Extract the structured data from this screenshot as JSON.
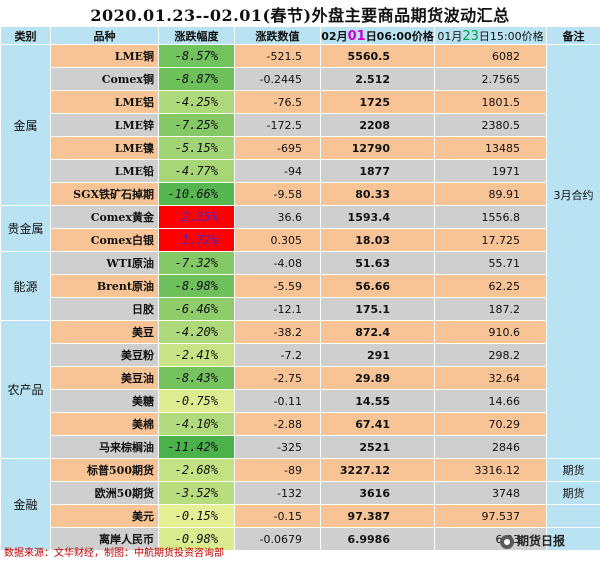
{
  "title": "2020.01.23--02.01(春节)外盘主要商品期货波动汇总",
  "headers": {
    "category": "类别",
    "name": "品种",
    "pct": "涨跌幅度",
    "chg": "涨跌数值",
    "new_prefix": "02月",
    "new_day": "01",
    "new_suffix": "日06:00价格",
    "old_prefix": "01月",
    "old_day": "23",
    "old_suffix": "日15:00价格",
    "note": "备注"
  },
  "colors": {
    "header_bg": "#b9e3f2",
    "row_orange": "#f8c496",
    "row_gray": "#cfcfcf",
    "accent_red": "#c00000"
  },
  "groups": [
    {
      "category": "金属",
      "note": "3月合约",
      "rows": [
        {
          "name": "LME铜",
          "pct": "-8.57%",
          "chg": "-521.5",
          "new": "5560.5",
          "old": "6082"
        },
        {
          "name": "Comex铜",
          "pct": "-8.87%",
          "chg": "-0.2445",
          "new": "2.512",
          "old": "2.7565"
        },
        {
          "name": "LME铝",
          "pct": "-4.25%",
          "chg": "-76.5",
          "new": "1725",
          "old": "1801.5"
        },
        {
          "name": "LME锌",
          "pct": "-7.25%",
          "chg": "-172.5",
          "new": "2208",
          "old": "2380.5"
        },
        {
          "name": "LME镍",
          "pct": "-5.15%",
          "chg": "-695",
          "new": "12790",
          "old": "13485"
        },
        {
          "name": "LME铅",
          "pct": "-4.77%",
          "chg": "-94",
          "new": "1877",
          "old": "1971"
        },
        {
          "name": "SGX铁矿石掉期",
          "pct": "-10.66%",
          "chg": "-9.58",
          "new": "80.33",
          "old": "89.91"
        }
      ]
    },
    {
      "category": "贵金属",
      "note": "",
      "rows": [
        {
          "name": "Comex黄金",
          "pct": "2.35%",
          "chg": "36.6",
          "new": "1593.4",
          "old": "1556.8"
        },
        {
          "name": "Comex白银",
          "pct": "1.72%",
          "chg": "0.305",
          "new": "18.03",
          "old": "17.725"
        }
      ]
    },
    {
      "category": "能源",
      "note": "",
      "rows": [
        {
          "name": "WTI原油",
          "pct": "-7.32%",
          "chg": "-4.08",
          "new": "51.63",
          "old": "55.71"
        },
        {
          "name": "Brent原油",
          "pct": "-8.98%",
          "chg": "-5.59",
          "new": "56.66",
          "old": "62.25"
        },
        {
          "name": "日胶",
          "pct": "-6.46%",
          "chg": "-12.1",
          "new": "175.1",
          "old": "187.2"
        }
      ]
    },
    {
      "category": "农产品",
      "note": "",
      "rows": [
        {
          "name": "美豆",
          "pct": "-4.20%",
          "chg": "-38.2",
          "new": "872.4",
          "old": "910.6"
        },
        {
          "name": "美豆粉",
          "pct": "-2.41%",
          "chg": "-7.2",
          "new": "291",
          "old": "298.2"
        },
        {
          "name": "美豆油",
          "pct": "-8.43%",
          "chg": "-2.75",
          "new": "29.89",
          "old": "32.64"
        },
        {
          "name": "美糖",
          "pct": "-0.75%",
          "chg": "-0.11",
          "new": "14.55",
          "old": "14.66"
        },
        {
          "name": "美棉",
          "pct": "-4.10%",
          "chg": "-2.88",
          "new": "67.41",
          "old": "70.29"
        },
        {
          "name": "马来棕榈油",
          "pct": "-11.42%",
          "chg": "-325",
          "new": "2521",
          "old": "2846"
        }
      ]
    },
    {
      "category": "金融",
      "note": "",
      "rows": [
        {
          "name": "标普500期货",
          "pct": "-2.68%",
          "chg": "-89",
          "new": "3227.12",
          "old": "3316.12",
          "note": "期货"
        },
        {
          "name": "欧洲50期货",
          "pct": "-3.52%",
          "chg": "-132",
          "new": "3616",
          "old": "3748",
          "note": "期货"
        },
        {
          "name": "美元",
          "pct": "-0.15%",
          "chg": "-0.15",
          "new": "97.387",
          "old": "97.537",
          "note": ""
        },
        {
          "name": "离岸人民币",
          "pct": "-0.98%",
          "chg": "-0.0679",
          "new": "6.9986",
          "old": "6.93",
          "note": ""
        }
      ]
    }
  ],
  "footer": "数据来源：文华财经，制图：中航期货投资咨询部",
  "logo_text": "期货日报"
}
